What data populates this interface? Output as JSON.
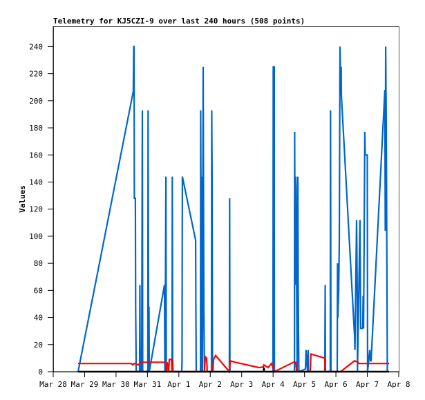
{
  "chart_data": {
    "type": "line",
    "title": "Telemetry for KJ5CZI-9 over last 240 hours (508 points)",
    "xlabel": "",
    "ylabel": "Values",
    "x_units": "hours since Mar 28 00:00",
    "xlim": [
      0,
      264
    ],
    "ylim": [
      0,
      255
    ],
    "grid": false,
    "x_ticks": [
      {
        "value": 0,
        "label": "Mar 28"
      },
      {
        "value": 24,
        "label": "Mar 29"
      },
      {
        "value": 48,
        "label": "Mar 30"
      },
      {
        "value": 72,
        "label": "Mar 31"
      },
      {
        "value": 96,
        "label": "Apr 1"
      },
      {
        "value": 120,
        "label": "Apr 2"
      },
      {
        "value": 144,
        "label": "Apr 3"
      },
      {
        "value": 168,
        "label": "Apr 4"
      },
      {
        "value": 192,
        "label": "Apr 5"
      },
      {
        "value": 216,
        "label": "Apr 6"
      },
      {
        "value": 240,
        "label": "Apr 7"
      },
      {
        "value": 264,
        "label": "Apr 8"
      }
    ],
    "y_ticks": [
      0,
      20,
      40,
      60,
      80,
      100,
      120,
      140,
      160,
      180,
      200,
      220,
      240
    ],
    "series": [
      {
        "name": "black",
        "color": "#000000",
        "points": [
          [
            19,
            0
          ],
          [
            160.8,
            0
          ],
          [
            161.0,
            3
          ],
          [
            161.2,
            0
          ],
          [
            256.6,
            0
          ]
        ]
      },
      {
        "name": "red",
        "color": "#ff0000",
        "points": [
          [
            19.0,
            6
          ],
          [
            59.7,
            6
          ],
          [
            60.7,
            5
          ],
          [
            61.8,
            6
          ],
          [
            64.9,
            5
          ],
          [
            66.0,
            6
          ],
          [
            67.6,
            7
          ],
          [
            85.0,
            7
          ],
          [
            86.1,
            6
          ],
          [
            86.6,
            0
          ],
          [
            87.1,
            7
          ],
          [
            88.2,
            0
          ],
          [
            88.7,
            9
          ],
          [
            90.3,
            9
          ],
          [
            90.8,
            0
          ],
          [
            91.0,
            8
          ],
          [
            91.3,
            8
          ],
          [
            91.5,
            0
          ],
          [
            115.6,
            0
          ],
          [
            116.2,
            11
          ],
          [
            117.2,
            10
          ],
          [
            117.7,
            0
          ],
          [
            122.0,
            0
          ],
          [
            122.5,
            9
          ],
          [
            124.1,
            12
          ],
          [
            134.6,
            0
          ],
          [
            135.2,
            8
          ],
          [
            138.9,
            7
          ],
          [
            157.3,
            3
          ],
          [
            160.5,
            3.5
          ],
          [
            161.0,
            5
          ],
          [
            164.2,
            3
          ],
          [
            166.8,
            6
          ],
          [
            169.0,
            0
          ],
          [
            183.7,
            7
          ],
          [
            185.3,
            7
          ],
          [
            186.0,
            0
          ],
          [
            196.4,
            0
          ],
          [
            196.9,
            13
          ],
          [
            207.5,
            10
          ],
          [
            207.8,
            0
          ],
          [
            219.6,
            0
          ],
          [
            230.2,
            8
          ],
          [
            232.8,
            7
          ],
          [
            233.5,
            6
          ],
          [
            256.6,
            6
          ]
        ]
      },
      {
        "name": "blue",
        "color": "#0066cc",
        "points": [
          [
            19.0,
            0
          ],
          [
            61.2,
            207
          ],
          [
            61.5,
            240
          ],
          [
            61.8,
            240
          ],
          [
            62.0,
            128
          ],
          [
            62.8,
            128
          ],
          [
            63.0,
            48
          ],
          [
            63.4,
            0
          ],
          [
            66.0,
            0
          ],
          [
            66.2,
            64
          ],
          [
            66.5,
            0
          ],
          [
            67.1,
            16
          ],
          [
            67.6,
            0
          ],
          [
            68.1,
            193
          ],
          [
            68.4,
            0
          ],
          [
            72.3,
            0
          ],
          [
            72.5,
            193
          ],
          [
            72.9,
            0
          ],
          [
            73.2,
            48
          ],
          [
            73.4,
            0
          ],
          [
            85.0,
            64
          ],
          [
            85.3,
            0
          ],
          [
            85.8,
            72
          ],
          [
            86.1,
            144
          ],
          [
            86.4,
            0
          ],
          [
            90.8,
            0
          ],
          [
            91.0,
            144
          ],
          [
            91.3,
            0
          ],
          [
            98.2,
            0
          ],
          [
            98.4,
            8
          ],
          [
            98.7,
            144
          ],
          [
            108.8,
            97
          ],
          [
            109.0,
            48
          ],
          [
            109.3,
            0
          ],
          [
            112.5,
            0
          ],
          [
            112.7,
            193
          ],
          [
            113.0,
            97
          ],
          [
            113.2,
            0
          ],
          [
            113.8,
            144
          ],
          [
            114.0,
            0
          ],
          [
            114.6,
            225
          ],
          [
            115.1,
            48
          ],
          [
            115.4,
            16
          ],
          [
            115.6,
            0
          ],
          [
            120.9,
            0
          ],
          [
            121.1,
            193
          ],
          [
            121.4,
            144
          ],
          [
            121.7,
            0
          ],
          [
            134.6,
            0
          ],
          [
            134.8,
            128
          ],
          [
            135.0,
            0
          ],
          [
            167.9,
            0
          ],
          [
            168.1,
            225
          ],
          [
            168.9,
            225
          ],
          [
            169.0,
            0
          ],
          [
            184.3,
            0
          ],
          [
            184.5,
            177
          ],
          [
            184.8,
            64
          ],
          [
            185.3,
            144
          ],
          [
            185.6,
            136
          ],
          [
            186.0,
            64
          ],
          [
            186.4,
            0
          ],
          [
            186.9,
            144
          ],
          [
            187.2,
            64
          ],
          [
            187.4,
            32
          ],
          [
            187.7,
            0
          ],
          [
            192.7,
            2
          ],
          [
            193.2,
            16
          ],
          [
            193.8,
            8
          ],
          [
            194.3,
            0
          ],
          [
            194.8,
            16
          ],
          [
            195.0,
            0
          ],
          [
            207.5,
            0
          ],
          [
            207.8,
            64
          ],
          [
            208.0,
            0
          ],
          [
            211.7,
            0
          ],
          [
            211.9,
            193
          ],
          [
            212.2,
            0
          ],
          [
            217.0,
            0
          ],
          [
            217.2,
            80
          ],
          [
            217.5,
            40
          ],
          [
            218.1,
            60
          ],
          [
            218.6,
            96
          ],
          [
            219.1,
            240
          ],
          [
            219.6,
            213
          ],
          [
            220.0,
            225
          ],
          [
            220.2,
            204
          ],
          [
            230.2,
            27
          ],
          [
            230.5,
            16
          ],
          [
            231.8,
            112
          ],
          [
            232.3,
            56
          ],
          [
            232.5,
            0
          ],
          [
            234.4,
            112
          ],
          [
            234.9,
            32
          ],
          [
            236.5,
            32
          ],
          [
            236.8,
            56
          ],
          [
            237.1,
            32
          ],
          [
            238.1,
            177
          ],
          [
            238.4,
            160
          ],
          [
            240.0,
            160
          ],
          [
            240.2,
            0
          ],
          [
            241.8,
            16
          ],
          [
            242.4,
            8
          ],
          [
            242.9,
            8
          ],
          [
            253.4,
            208
          ],
          [
            253.7,
            104
          ],
          [
            254.0,
            240
          ],
          [
            254.5,
            180
          ],
          [
            255.0,
            60
          ],
          [
            255.3,
            0
          ]
        ]
      }
    ]
  }
}
